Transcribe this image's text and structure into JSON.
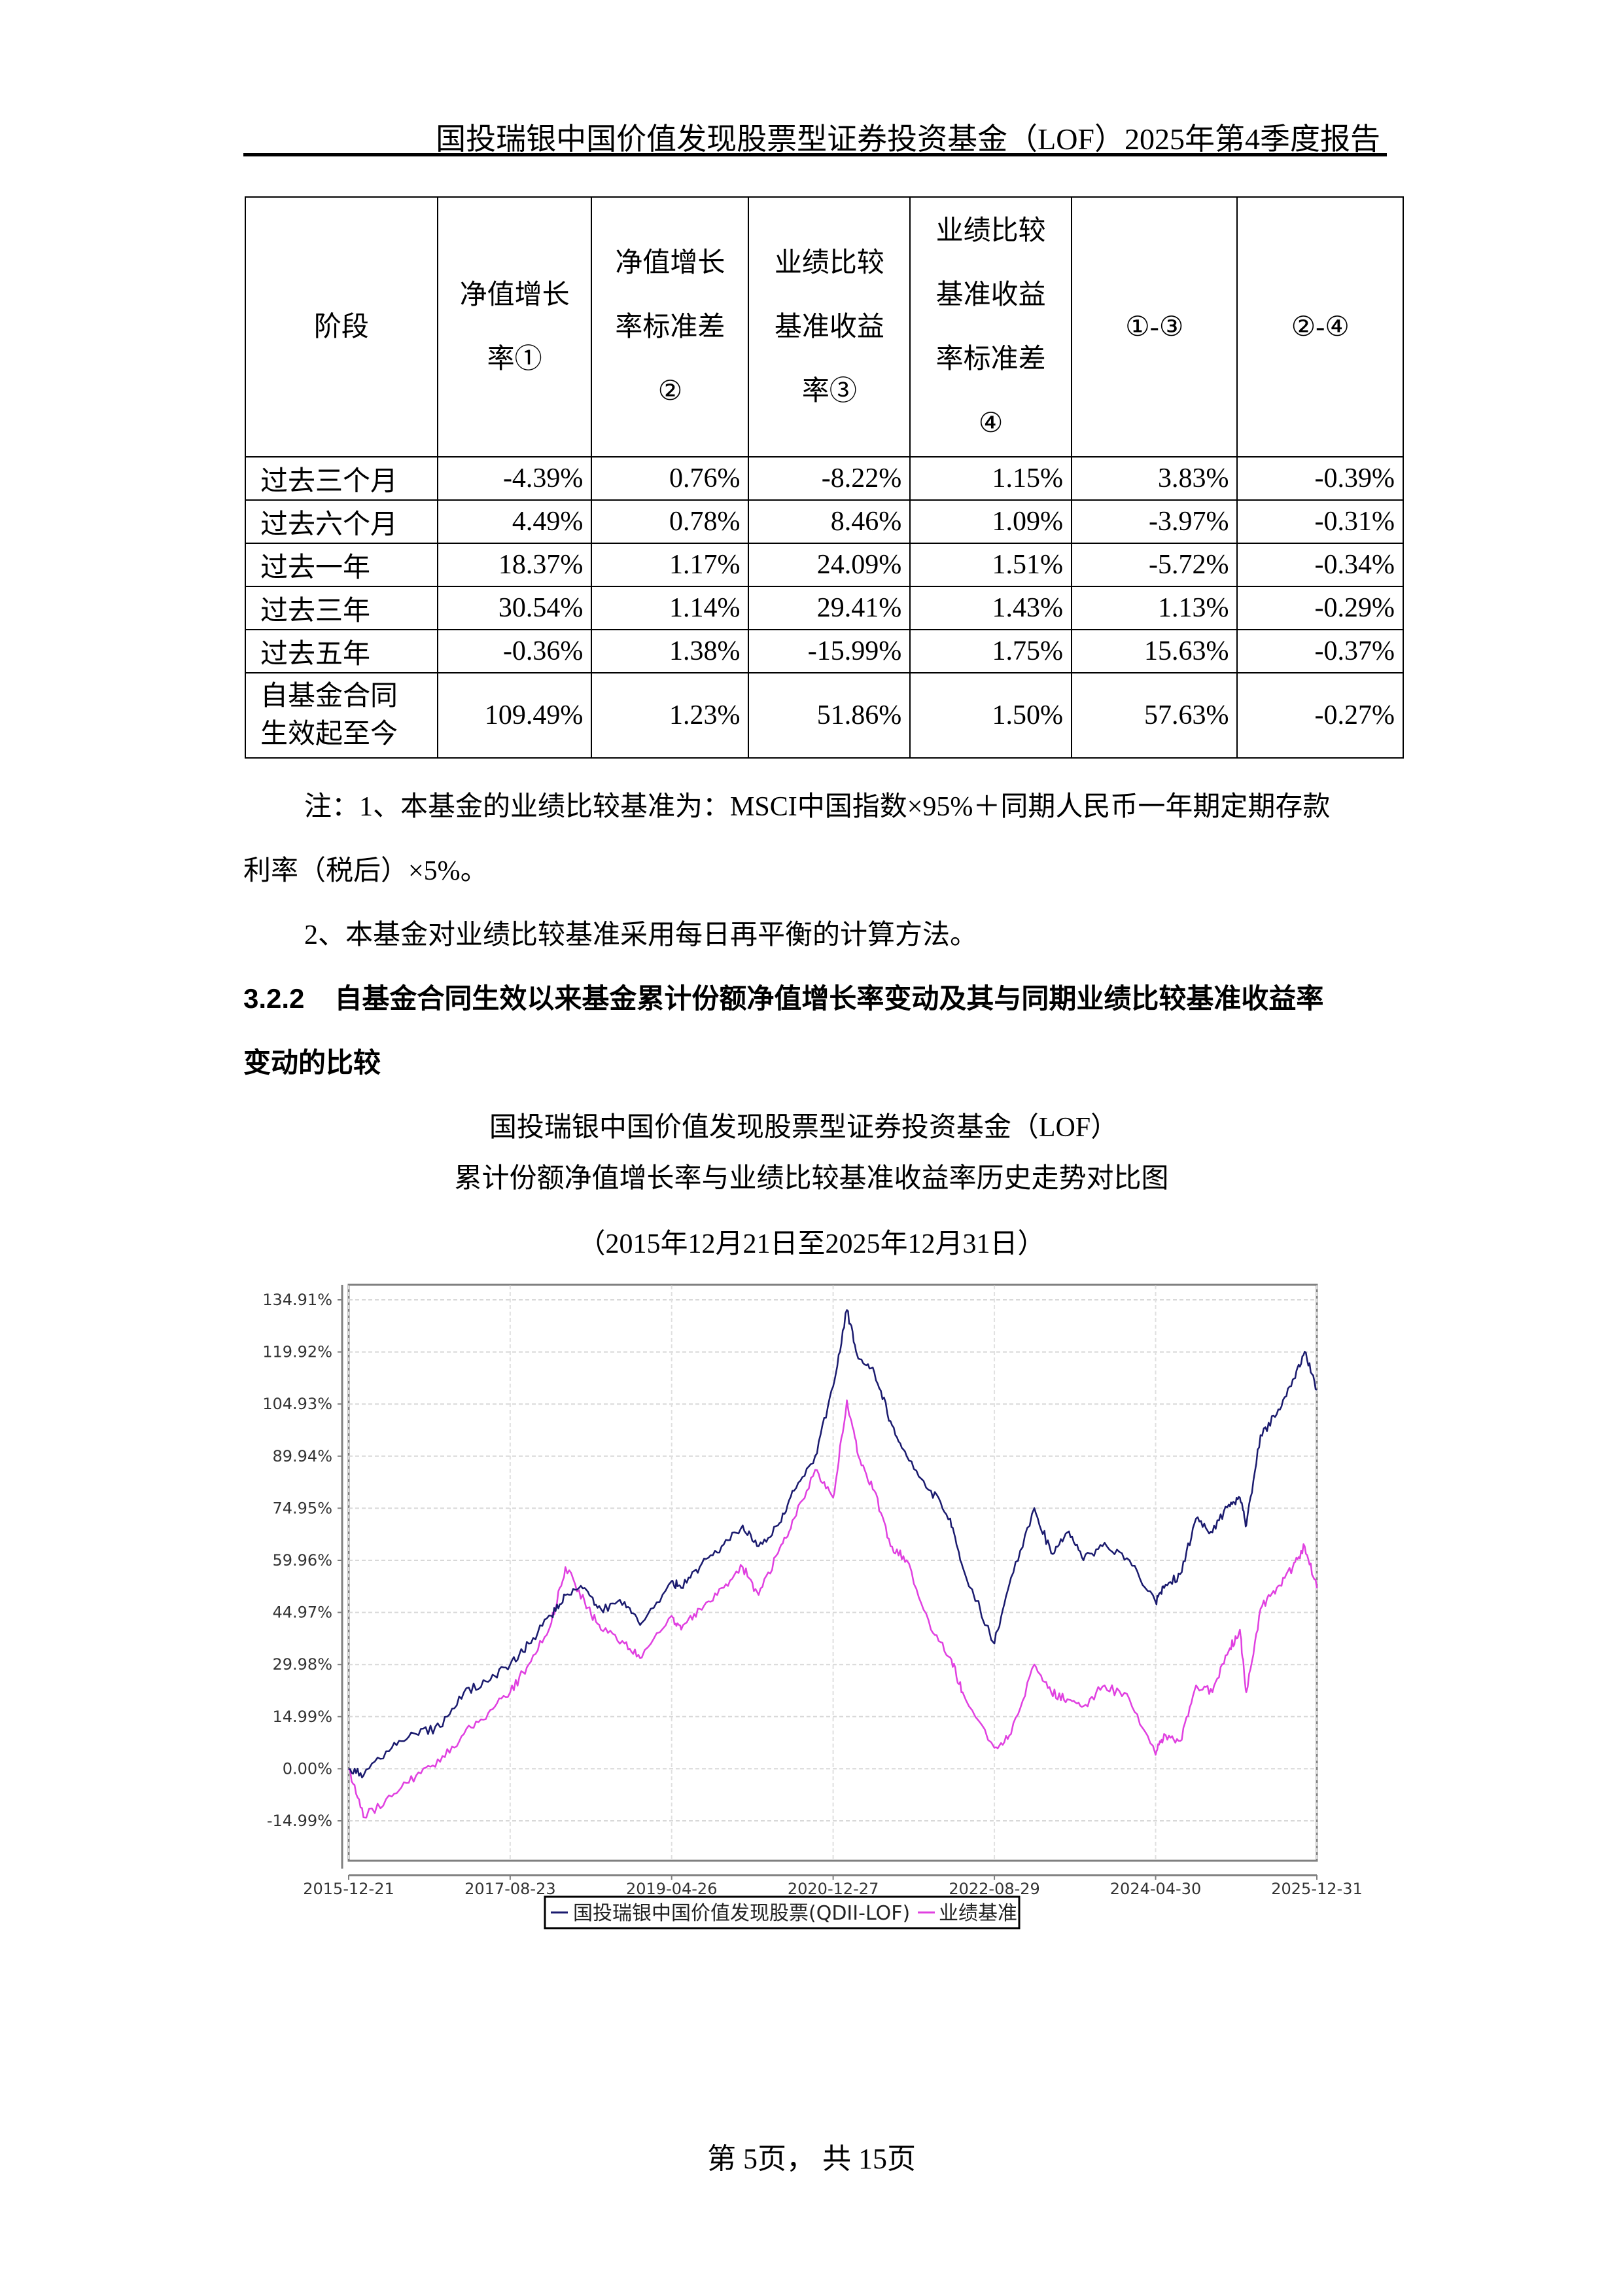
{
  "header": {
    "title": "国投瑞银中国价值发现股票型证券投资基金（LOF）2025年第4季度报告"
  },
  "table": {
    "headers": [
      "阶段",
      "净值增长率①",
      "净值增长率标准差②",
      "业绩比较基准收益率③",
      "业绩比较基准收益率标准差④",
      "①-③",
      "②-④"
    ],
    "header_lines": [
      [
        "阶段"
      ],
      [
        "净值增长",
        "率①"
      ],
      [
        "净值增长",
        "率标准差",
        "②"
      ],
      [
        "业绩比较",
        "基准收益",
        "率③"
      ],
      [
        "业绩比较",
        "基准收益",
        "率标准差",
        "④"
      ],
      [
        "①-③"
      ],
      [
        "②-④"
      ]
    ],
    "rows": [
      {
        "stage": "过去三个月",
        "c1": "-4.39%",
        "c2": "0.76%",
        "c3": "-8.22%",
        "c4": "1.15%",
        "c5": "3.83%",
        "c6": "-0.39%"
      },
      {
        "stage": "过去六个月",
        "c1": "4.49%",
        "c2": "0.78%",
        "c3": "8.46%",
        "c4": "1.09%",
        "c5": "-3.97%",
        "c6": "-0.31%"
      },
      {
        "stage": "过去一年",
        "c1": "18.37%",
        "c2": "1.17%",
        "c3": "24.09%",
        "c4": "1.51%",
        "c5": "-5.72%",
        "c6": "-0.34%"
      },
      {
        "stage": "过去三年",
        "c1": "30.54%",
        "c2": "1.14%",
        "c3": "29.41%",
        "c4": "1.43%",
        "c5": "1.13%",
        "c6": "-0.29%"
      },
      {
        "stage": "过去五年",
        "c1": "-0.36%",
        "c2": "1.38%",
        "c3": "-15.99%",
        "c4": "1.75%",
        "c5": "15.63%",
        "c6": "-0.37%"
      },
      {
        "stage": "自基金合同生效起至今",
        "stage_lines": [
          "自基金合同",
          "生效起至今"
        ],
        "c1": "109.49%",
        "c2": "1.23%",
        "c3": "51.86%",
        "c4": "1.50%",
        "c5": "57.63%",
        "c6": "-0.27%"
      }
    ]
  },
  "notes": {
    "note1_line1": "注：1、本基金的业绩比较基准为：MSCI中国指数×95%＋同期人民币一年期定期存款",
    "note1_line2": "利率（税后）×5%。",
    "note2": "2、本基金对业绩比较基准采用每日再平衡的计算方法。"
  },
  "section": {
    "number": "3.2.2",
    "title_line1": "自基金合同生效以来基金累计份额净值增长率变动及其与同期业绩比较基准收益率",
    "title_line2": "变动的比较"
  },
  "chart_caption": {
    "line1": "国投瑞银中国价值发现股票型证券投资基金（LOF）",
    "line2": "累计份额净值增长率与业绩比较基准收益率历史走势对比图",
    "line3": "（2015年12月21日至2025年12月31日）"
  },
  "chart_data": {
    "type": "line",
    "title": "累计份额净值增长率与业绩比较基准收益率历史走势对比图",
    "xlabel": "",
    "ylabel": "",
    "x_ticks": [
      "2015-12-21",
      "2017-08-23",
      "2019-04-26",
      "2020-12-27",
      "2022-08-29",
      "2024-04-30",
      "2025-12-31"
    ],
    "y_ticks": [
      "134.91%",
      "119.92%",
      "104.93%",
      "89.94%",
      "74.95%",
      "59.96%",
      "44.97%",
      "29.98%",
      "14.99%",
      "0.00%",
      "-14.99%"
    ],
    "ylim": [
      -21,
      141
    ],
    "grid": true,
    "legend_position": "bottom",
    "x": [
      "2015-12-21",
      "2016-02-15",
      "2016-06-01",
      "2016-09-01",
      "2016-12-01",
      "2017-03-01",
      "2017-06-01",
      "2017-08-23",
      "2017-11-01",
      "2018-01-26",
      "2018-03-20",
      "2018-06-01",
      "2018-08-01",
      "2018-10-30",
      "2019-01-03",
      "2019-04-26",
      "2019-06-01",
      "2019-08-10",
      "2019-11-01",
      "2020-01-20",
      "2020-03-20",
      "2020-06-01",
      "2020-08-01",
      "2020-10-20",
      "2020-12-27",
      "2021-02-17",
      "2021-04-01",
      "2021-06-01",
      "2021-08-01",
      "2021-10-01",
      "2022-01-01",
      "2022-03-15",
      "2022-05-01",
      "2022-08-29",
      "2022-10-31",
      "2023-01-27",
      "2023-04-01",
      "2023-06-01",
      "2023-08-01",
      "2023-10-20",
      "2024-01-22",
      "2024-04-30",
      "2024-06-01",
      "2024-08-01",
      "2024-09-30",
      "2024-12-01",
      "2025-02-01",
      "2025-03-15",
      "2025-04-08",
      "2025-06-01",
      "2025-08-01",
      "2025-10-01",
      "2025-11-15",
      "2025-12-31"
    ],
    "series": [
      {
        "name": "国投瑞银中国价值发现股票(QDII-LOF)",
        "color": "#1a1a6e",
        "values": [
          0,
          -2,
          6,
          10,
          12,
          22,
          25,
          30,
          36,
          44,
          50,
          52,
          46,
          48,
          42,
          54,
          52,
          58,
          64,
          70,
          64,
          70,
          80,
          90,
          110,
          132,
          118,
          114,
          100,
          90,
          80,
          72,
          58,
          36,
          55,
          75,
          62,
          68,
          60,
          65,
          60,
          48,
          52,
          56,
          72,
          68,
          76,
          78,
          70,
          96,
          102,
          112,
          120,
          109
        ]
      },
      {
        "name": "业绩基准",
        "color": "#e040e0",
        "values": [
          0,
          -14,
          -8,
          -2,
          2,
          10,
          16,
          22,
          30,
          42,
          58,
          48,
          40,
          36,
          32,
          44,
          40,
          46,
          52,
          58,
          50,
          62,
          72,
          86,
          78,
          106,
          90,
          80,
          64,
          60,
          40,
          32,
          22,
          6,
          10,
          30,
          22,
          20,
          18,
          24,
          20,
          4,
          10,
          8,
          24,
          22,
          34,
          40,
          22,
          46,
          52,
          58,
          64,
          52
        ]
      }
    ]
  },
  "chart_legend": {
    "fund_label": "国投瑞银中国价值发现股票(QDII-LOF)",
    "benchmark_label": "业绩基准",
    "fund_color": "#1a1a6e",
    "benchmark_color": "#e040e0"
  },
  "footer": {
    "page_text": "第 5页， 共 15页"
  }
}
